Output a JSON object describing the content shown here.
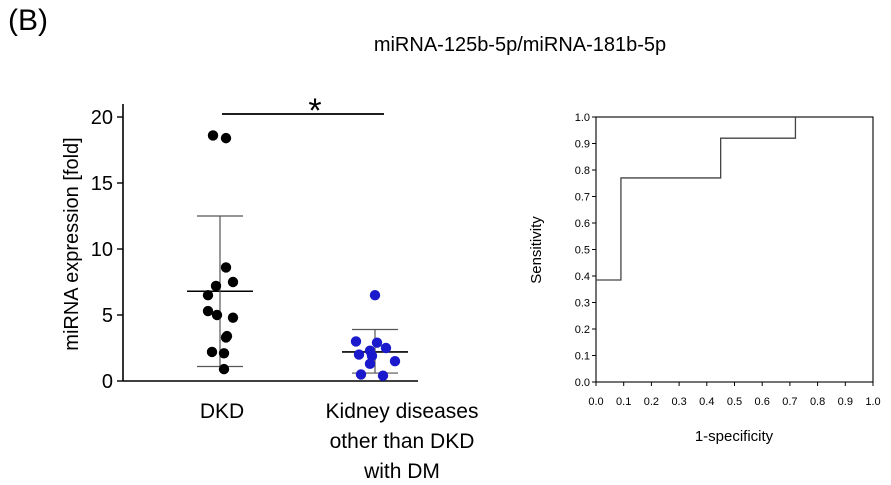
{
  "panel_label": "(B)",
  "figure_title": "miRNA-125b-5p/miRNA-181b-5p",
  "colors": {
    "dkd": "#000000",
    "other": "#1a1acc",
    "axis": "#000000",
    "roc": "#444444"
  },
  "chart_data": [
    {
      "type": "scatter",
      "ylabel": "miRNA expression [fold]",
      "xlabel": "",
      "ylim": [
        0,
        20
      ],
      "yticks": [
        "0",
        "5",
        "10",
        "15",
        "20"
      ],
      "categories": [
        "DKD",
        "Kidney diseases\nother than DKD\nwith DM"
      ],
      "category_lines": [
        [
          "DKD"
        ],
        [
          "Kidney diseases",
          "other than DKD",
          "with DM"
        ]
      ],
      "series": [
        {
          "category": "DKD",
          "points": [
            18.6,
            18.4,
            8.6,
            7.5,
            7.2,
            6.5,
            5.3,
            5.0,
            4.8,
            3.4,
            3.3,
            2.2,
            2.1,
            0.9
          ],
          "mean": 6.8,
          "sd_upper": 12.5,
          "sd_lower": 1.1
        },
        {
          "category": "Kidney diseases other than DKD with DM",
          "points": [
            6.5,
            3.0,
            2.9,
            2.5,
            2.3,
            2.0,
            1.9,
            1.5,
            1.3,
            0.5,
            0.4
          ],
          "mean": 2.2,
          "sd_upper": 3.9,
          "sd_lower": 0.6
        }
      ],
      "significance": "*"
    },
    {
      "type": "line",
      "xlabel": "1-specificity",
      "ylabel": "Sensitivity",
      "xlim": [
        0,
        1
      ],
      "ylim": [
        0,
        1
      ],
      "xticks": [
        "0.0",
        "0.1",
        "0.2",
        "0.3",
        "0.4",
        "0.5",
        "0.6",
        "0.7",
        "0.8",
        "0.9",
        "1.0"
      ],
      "yticks": [
        "0.0",
        "0.1",
        "0.2",
        "0.3",
        "0.4",
        "0.5",
        "0.6",
        "0.7",
        "0.8",
        "0.9",
        "1.0"
      ],
      "x": [
        0.0,
        0.09,
        0.09,
        0.45,
        0.45,
        0.72,
        0.72
      ],
      "y": [
        0.385,
        0.385,
        0.77,
        0.77,
        0.92,
        0.92,
        1.0
      ]
    }
  ]
}
